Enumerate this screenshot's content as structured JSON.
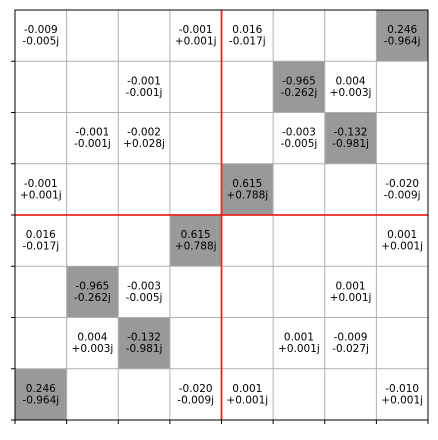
{
  "chart_data": {
    "type": "heatmap",
    "title": "",
    "xlabel": "",
    "ylabel": "",
    "rows": 8,
    "cols": 8,
    "grid": true,
    "colors": {
      "highlight_fill": "#999999",
      "grid": "#b0b0b0",
      "divider": "#e8281e",
      "frame": "#000000",
      "background": "#ffffff"
    },
    "cells": [
      {
        "row": 0,
        "col": 0,
        "re": "-0.009",
        "im": "-0.005j",
        "highlight": false
      },
      {
        "row": 0,
        "col": 3,
        "re": "-0.001",
        "im": "+0.001j",
        "highlight": false
      },
      {
        "row": 0,
        "col": 4,
        "re": "0.016",
        "im": "-0.017j",
        "highlight": false
      },
      {
        "row": 0,
        "col": 7,
        "re": "0.246",
        "im": "-0.964j",
        "highlight": true
      },
      {
        "row": 1,
        "col": 2,
        "re": "-0.001",
        "im": "-0.001j",
        "highlight": false
      },
      {
        "row": 1,
        "col": 5,
        "re": "-0.965",
        "im": "-0.262j",
        "highlight": true
      },
      {
        "row": 1,
        "col": 6,
        "re": "0.004",
        "im": "+0.003j",
        "highlight": false
      },
      {
        "row": 2,
        "col": 1,
        "re": "-0.001",
        "im": "-0.001j",
        "highlight": false
      },
      {
        "row": 2,
        "col": 2,
        "re": "-0.002",
        "im": "+0.028j",
        "highlight": false
      },
      {
        "row": 2,
        "col": 5,
        "re": "-0.003",
        "im": "-0.005j",
        "highlight": false
      },
      {
        "row": 2,
        "col": 6,
        "re": "-0.132",
        "im": "-0.981j",
        "highlight": true
      },
      {
        "row": 3,
        "col": 0,
        "re": "-0.001",
        "im": "+0.001j",
        "highlight": false
      },
      {
        "row": 3,
        "col": 4,
        "re": "0.615",
        "im": "+0.788j",
        "highlight": true
      },
      {
        "row": 3,
        "col": 7,
        "re": "-0.020",
        "im": "-0.009j",
        "highlight": false
      },
      {
        "row": 4,
        "col": 0,
        "re": "0.016",
        "im": "-0.017j",
        "highlight": false
      },
      {
        "row": 4,
        "col": 3,
        "re": "0.615",
        "im": "+0.788j",
        "highlight": true
      },
      {
        "row": 4,
        "col": 7,
        "re": "0.001",
        "im": "+0.001j",
        "highlight": false
      },
      {
        "row": 5,
        "col": 1,
        "re": "-0.965",
        "im": "-0.262j",
        "highlight": true
      },
      {
        "row": 5,
        "col": 2,
        "re": "-0.003",
        "im": "-0.005j",
        "highlight": false
      },
      {
        "row": 5,
        "col": 6,
        "re": "0.001",
        "im": "+0.001j",
        "highlight": false
      },
      {
        "row": 6,
        "col": 1,
        "re": "0.004",
        "im": "+0.003j",
        "highlight": false
      },
      {
        "row": 6,
        "col": 2,
        "re": "-0.132",
        "im": "-0.981j",
        "highlight": true
      },
      {
        "row": 6,
        "col": 5,
        "re": "0.001",
        "im": "+0.001j",
        "highlight": false
      },
      {
        "row": 6,
        "col": 6,
        "re": "-0.009",
        "im": "-0.027j",
        "highlight": false
      },
      {
        "row": 7,
        "col": 0,
        "re": "0.246",
        "im": "-0.964j",
        "highlight": true
      },
      {
        "row": 7,
        "col": 3,
        "re": "-0.020",
        "im": "-0.009j",
        "highlight": false
      },
      {
        "row": 7,
        "col": 4,
        "re": "0.001",
        "im": "+0.001j",
        "highlight": false
      },
      {
        "row": 7,
        "col": 7,
        "re": "-0.010",
        "im": "+0.001j",
        "highlight": false
      }
    ]
  }
}
